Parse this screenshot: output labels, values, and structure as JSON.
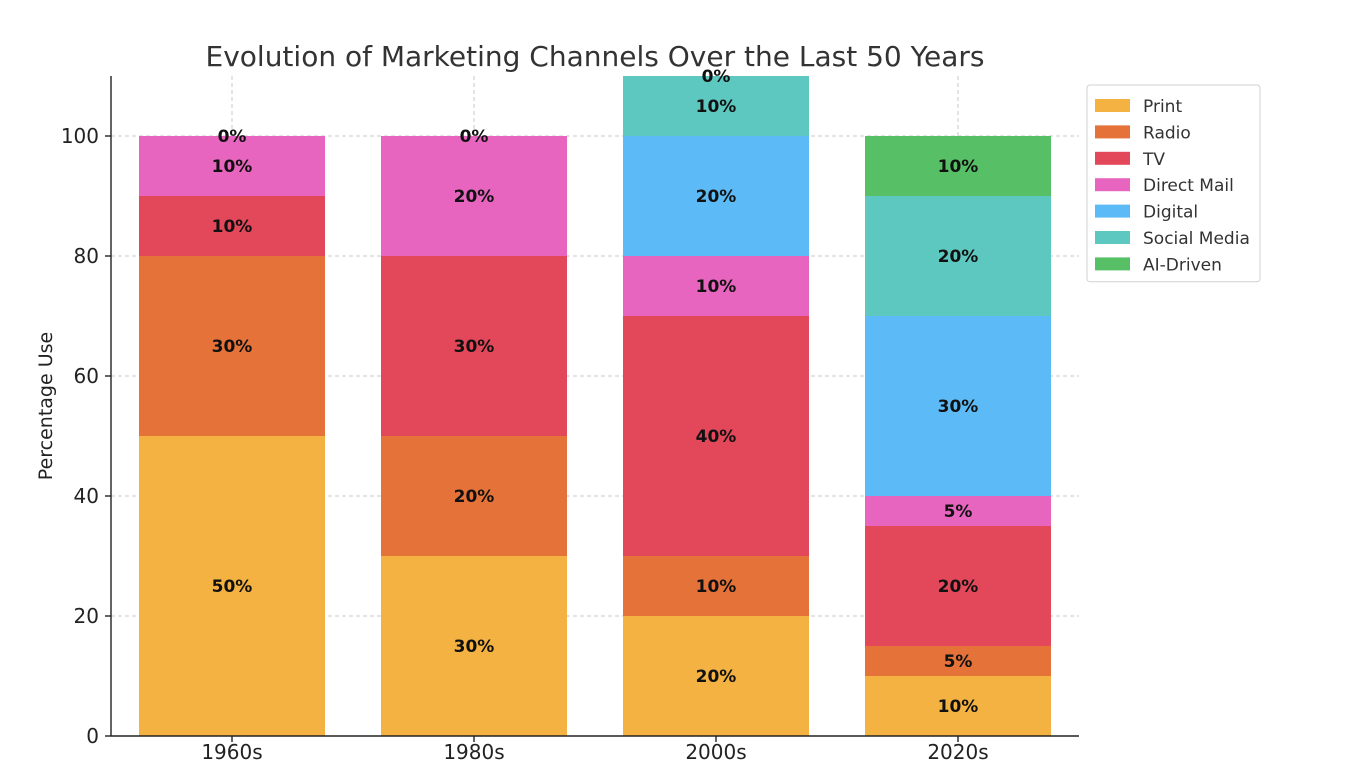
{
  "chart_data": {
    "type": "bar",
    "stacked": true,
    "title": "Evolution of Marketing Channels Over the Last 50 Years",
    "xlabel": "",
    "ylabel": "Percentage Use",
    "ylim": [
      0,
      110
    ],
    "yticks": [
      0,
      20,
      40,
      60,
      80,
      100
    ],
    "grid": true,
    "legend_position": "top-right",
    "categories": [
      "1960s",
      "1980s",
      "2000s",
      "2020s"
    ],
    "series": [
      {
        "name": "Print",
        "color": "#f3b241",
        "values": [
          50,
          30,
          20,
          10
        ]
      },
      {
        "name": "Radio",
        "color": "#e47239",
        "values": [
          30,
          20,
          10,
          5
        ]
      },
      {
        "name": "TV",
        "color": "#e2475a",
        "values": [
          10,
          30,
          40,
          20
        ]
      },
      {
        "name": "Direct Mail",
        "color": "#e865bf",
        "values": [
          10,
          20,
          10,
          5
        ]
      },
      {
        "name": "Digital",
        "color": "#5cbaf6",
        "values": [
          0,
          0,
          20,
          30
        ]
      },
      {
        "name": "Social Media",
        "color": "#5dc8bf",
        "values": [
          0,
          0,
          10,
          20
        ]
      },
      {
        "name": "AI-Driven",
        "color": "#57bf66",
        "values": [
          0,
          0,
          0,
          10
        ]
      }
    ],
    "data_labels": [
      [
        "50%",
        "30%",
        "20%",
        "10%"
      ],
      [
        "30%",
        "20%",
        "10%",
        "5%"
      ],
      [
        "10%",
        "30%",
        "40%",
        "20%"
      ],
      [
        "10%",
        "20%",
        "10%",
        "5%"
      ],
      [
        "0%",
        "0%",
        "20%",
        "30%"
      ],
      [
        null,
        null,
        "10%",
        "20%"
      ],
      [
        null,
        null,
        "0%",
        "10%"
      ]
    ]
  }
}
